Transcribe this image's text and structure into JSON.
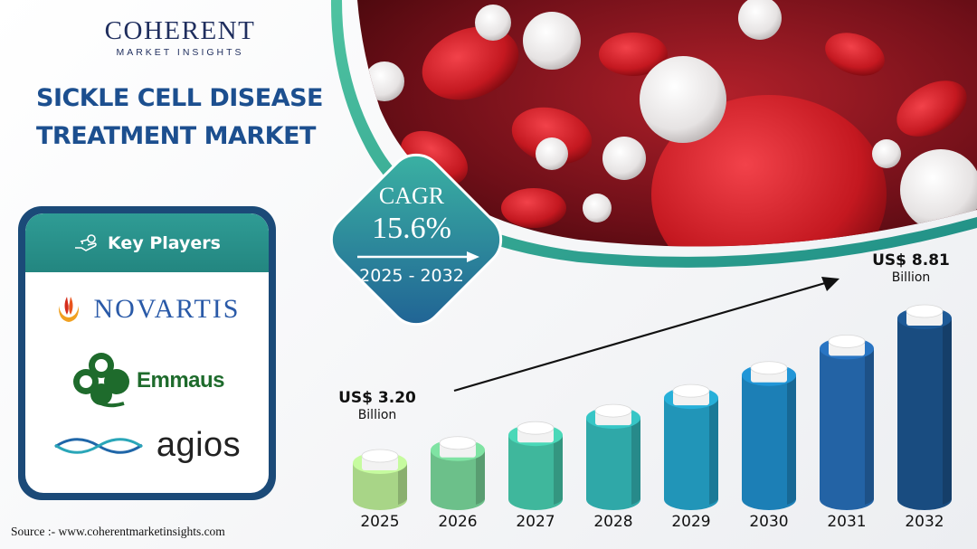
{
  "logo": {
    "main": "COHERENT",
    "sub": "MARKET INSIGHTS"
  },
  "title": {
    "line1": "SICKLE CELL DISEASE",
    "line2": "TREATMENT MARKET"
  },
  "cagr": {
    "label": "CAGR",
    "value": "15.6%",
    "period": "2025 - 2032"
  },
  "key_players": {
    "heading": "Key Players",
    "companies": [
      "NOVARTIS",
      "Emmaus",
      "agios"
    ]
  },
  "source": "Source :-  www.coherentmarketinsights.com",
  "start_label": {
    "amount": "US$ 3.20",
    "unit": "Billion"
  },
  "end_label": {
    "amount": "US$ 8.81",
    "unit": "Billion"
  },
  "colors": {
    "title": "#1c4f8f",
    "card_border": "#1b4a78",
    "card_header": "#2f9c95",
    "bars": [
      "#a8d587",
      "#6cc08a",
      "#3fb79c",
      "#2fa8a8",
      "#2195b8",
      "#1c7fb6",
      "#2363a5",
      "#194c80"
    ]
  },
  "chart_data": {
    "type": "bar",
    "categories": [
      "2025",
      "2026",
      "2027",
      "2028",
      "2029",
      "2030",
      "2031",
      "2032"
    ],
    "values": [
      3.2,
      3.7,
      4.28,
      4.95,
      5.72,
      6.61,
      7.64,
      8.81
    ],
    "title": "",
    "xlabel": "",
    "ylabel": "",
    "unit": "US$ Billion",
    "grid": false,
    "legend": "none"
  }
}
